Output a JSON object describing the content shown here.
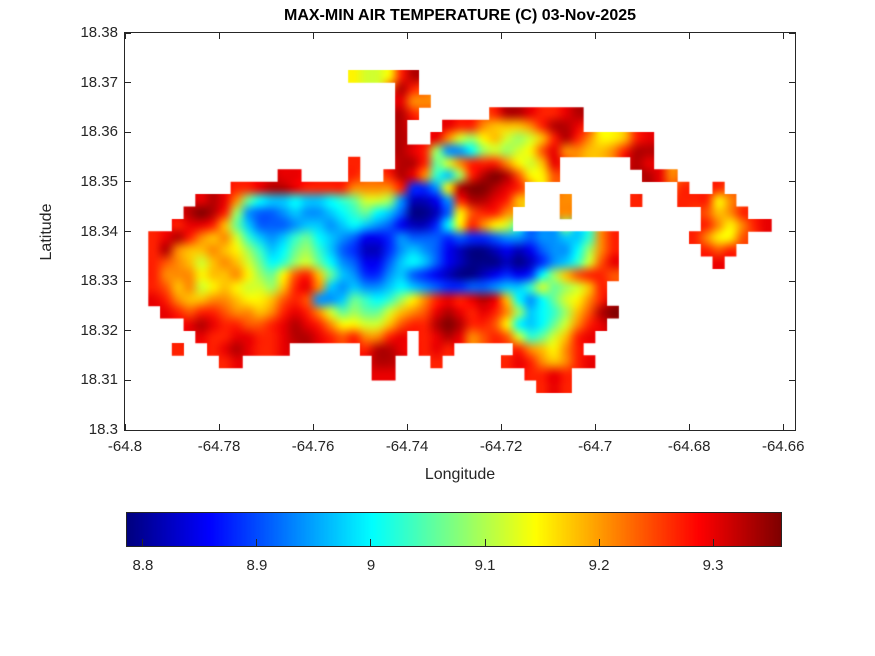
{
  "title": "MAX-MIN AIR TEMPERATURE (C) 03-Nov-2025",
  "axes": {
    "xlabel": "Longitude",
    "ylabel": "Latitude",
    "xlim": [
      -64.8,
      -64.6575
    ],
    "ylim": [
      18.3,
      18.38
    ],
    "x_tick_values": [
      -64.8,
      -64.78,
      -64.76,
      -64.74,
      -64.72,
      -64.7,
      -64.68,
      -64.66
    ],
    "x_tick_labels": [
      "-64.8",
      "-64.78",
      "-64.76",
      "-64.74",
      "-64.72",
      "-64.7",
      "-64.68",
      "-64.66"
    ],
    "y_tick_values": [
      18.3,
      18.31,
      18.32,
      18.33,
      18.34,
      18.35,
      18.36,
      18.37,
      18.38
    ],
    "y_tick_labels": [
      "18.3",
      "18.31",
      "18.32",
      "18.33",
      "18.34",
      "18.35",
      "18.36",
      "18.37",
      "18.38"
    ],
    "axis_color": "#262626"
  },
  "colorbar": {
    "orientation": "horizontal",
    "colormap": "jet",
    "cmin": 8.786,
    "cmax": 9.3596,
    "tick_values": [
      8.8,
      8.9,
      9,
      9.1,
      9.2,
      9.3
    ],
    "tick_labels": [
      "8.8",
      "8.9",
      "9",
      "9.1",
      "9.2",
      "9.3"
    ]
  },
  "chart_data": {
    "type": "heatmap",
    "title": "MAX-MIN AIR TEMPERATURE (C) 03-Nov-2025",
    "xlabel": "Longitude",
    "ylabel": "Latitude",
    "region": "island raster, sea masked white",
    "caxis": [
      8.786,
      9.3596
    ],
    "grid": {
      "cols": 58,
      "rows_count": 28,
      "origin_lon": -64.8,
      "origin_lat_top": 18.375,
      "cell_deg": 0.0025,
      "encoding": {
        "sea": ".",
        "levels": "abcdefghijklmnopqrst",
        "value_min": 8.79,
        "value_step": 0.03
      },
      "rows": [
        "..........................................................",
        "...................mllmqs.................................",
        ".......................sq.................................",
        ".......................roo................................",
        ".......................sq......qssrqqrs...................",
        ".......................s...rqqonnnoqssr...................",
        ".......................s..rolkmnlklnqsqommnqr.............",
        ".......................srqkffhklklmproonnoqss.............",
        "...................q...ssqjloqqqomlnr......sr.............",
        ".............rr....q..qsroigkqstspmmp.......sro...........",
        ".........qqrssrqqqqooooqddfmsttsrq.............q..q.......",
        "......rsrojhgghgghijllkfbbcfqssrqn...o.....q...qqqmo......",
        ".....stsqkfeefgffghijhgeaabempqqo....o...........pnoq.....",
        "....qrrqnjgeeefggfghgfecbbdhmqoml................qomoqr...",
        "..qrsqonoligfgijhgfeccdfeeededdeffeffggioq......qommp.....",
        "..qsonnonmkighjkigedbbdfgfecbaabcbceffhkoq.......qpq......",
        "..qponlnonljhikljhfecceghgecbaaababdfgilpr........r.......",
        "..qooomnnomkjmpqnjgfddfgedcbaabcdcdhknpqqp................",
        "..qpnolmnmllknqrogfgffghgfeddeefggiljklnq.................",
        "..rqonnoonmmnpqpffgjihikmoqrqrsrnhfhjlmoq.................",
        "...rqpqqpoonoqrqoljkjjlnoprsrqrqokghiknpst................",
        ".....rsrqqppqrsrqommllnpqqstsqqpmhghjloqr.................",
        "......rqqrrqqrssrqpqooqr.qrsropqplijlnqr..................",
        "....q..qrsrqqr......qssr.qrq.....qonmoq...................",
        "........qr...........ss...q.....qrqonoqr..................",
        ".....................rr...........qqrq....................",
        "...................................qrq....................",
        ".........................................................."
      ]
    }
  }
}
